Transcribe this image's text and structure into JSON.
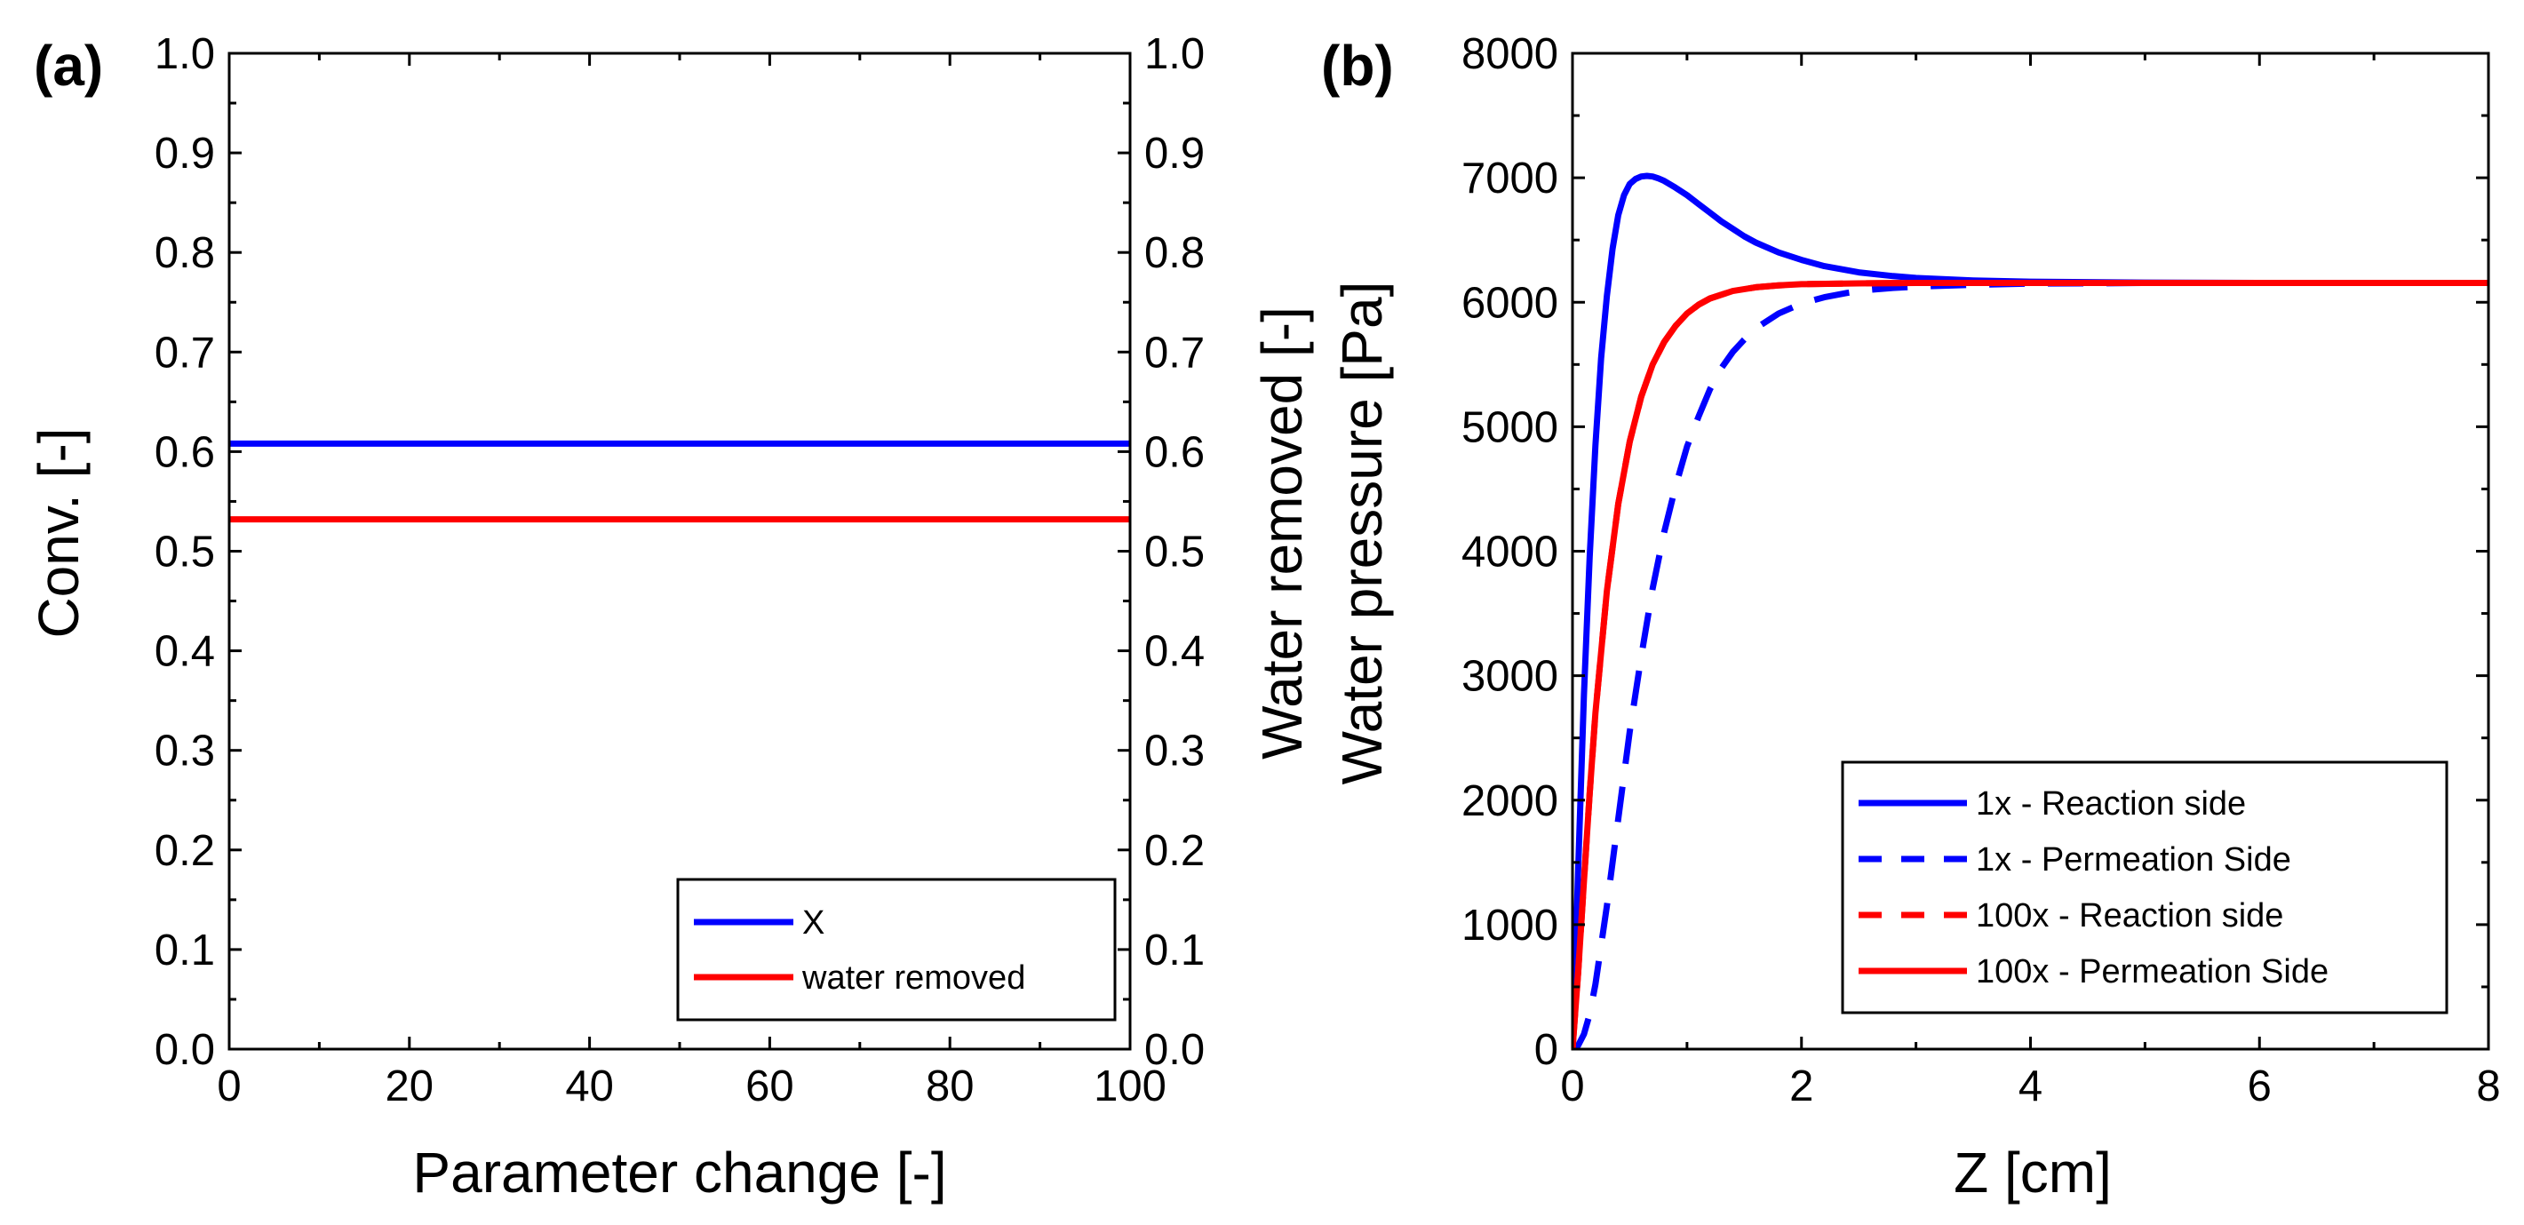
{
  "figure": {
    "panels": [
      "(a)",
      "(b)"
    ]
  },
  "chart_data": [
    {
      "type": "line",
      "panel_label": "(a)",
      "xlabel": "Parameter change [-]",
      "ylabel": "Conv. [-]",
      "y2label": "Water removed [-]",
      "xlim": [
        0,
        100
      ],
      "ylim": [
        0.0,
        1.0
      ],
      "y2lim": [
        0.0,
        1.0
      ],
      "xticks": [
        0,
        20,
        40,
        60,
        80,
        100
      ],
      "xtick_labels": [
        "0",
        "20",
        "40",
        "60",
        "80",
        "100"
      ],
      "yticks": [
        0,
        0.1,
        0.2,
        0.3,
        0.4,
        0.5,
        0.6,
        0.7,
        0.8,
        0.9,
        1.0
      ],
      "ytick_labels": [
        "0.0",
        "0.1",
        "0.2",
        "0.3",
        "0.4",
        "0.5",
        "0.6",
        "0.7",
        "0.8",
        "0.9",
        "1.0"
      ],
      "legend_position": "bottom-right",
      "series": [
        {
          "name": "X",
          "color": "#0000ff",
          "dash": "solid",
          "x": [
            0,
            100
          ],
          "y": [
            0.608,
            0.608
          ]
        },
        {
          "name": "water removed",
          "color": "#ff0000",
          "dash": "solid",
          "x": [
            0,
            100
          ],
          "y": [
            0.532,
            0.532
          ]
        }
      ]
    },
    {
      "type": "line",
      "panel_label": "(b)",
      "xlabel": "Z [cm]",
      "ylabel": "Water pressure [Pa]",
      "xlim": [
        0,
        8
      ],
      "ylim": [
        0,
        8000
      ],
      "xticks": [
        0,
        2,
        4,
        6,
        8
      ],
      "xtick_labels": [
        "0",
        "2",
        "4",
        "6",
        "8"
      ],
      "yticks": [
        0,
        1000,
        2000,
        3000,
        4000,
        5000,
        6000,
        7000,
        8000
      ],
      "ytick_labels": [
        "0",
        "1000",
        "2000",
        "3000",
        "4000",
        "5000",
        "6000",
        "7000",
        "8000"
      ],
      "legend_position": "bottom-right",
      "series": [
        {
          "name": "1x - Reaction side",
          "color": "#0000ff",
          "dash": "solid",
          "x": [
            0,
            0.05,
            0.1,
            0.15,
            0.2,
            0.25,
            0.3,
            0.35,
            0.4,
            0.45,
            0.5,
            0.55,
            0.6,
            0.65,
            0.7,
            0.75,
            0.8,
            0.9,
            1.0,
            1.1,
            1.2,
            1.3,
            1.4,
            1.5,
            1.6,
            1.8,
            2.0,
            2.2,
            2.5,
            2.8,
            3.0,
            3.5,
            4.0,
            5.0,
            6.0,
            7.0,
            8.0
          ],
          "y": [
            0,
            1450,
            2850,
            3950,
            4850,
            5550,
            6050,
            6430,
            6700,
            6860,
            6950,
            6990,
            7010,
            7015,
            7010,
            6995,
            6975,
            6920,
            6860,
            6790,
            6720,
            6650,
            6590,
            6530,
            6480,
            6400,
            6340,
            6290,
            6240,
            6210,
            6195,
            6175,
            6165,
            6158,
            6155,
            6155,
            6155
          ]
        },
        {
          "name": "1x - Permeation Side",
          "color": "#0000ff",
          "dash": "dashed",
          "x": [
            0,
            0.05,
            0.1,
            0.15,
            0.2,
            0.3,
            0.4,
            0.5,
            0.6,
            0.7,
            0.8,
            0.9,
            1.0,
            1.1,
            1.2,
            1.3,
            1.4,
            1.5,
            1.6,
            1.8,
            2.0,
            2.2,
            2.4,
            2.6,
            2.8,
            3.0,
            3.5,
            4.0,
            4.5,
            5.0,
            6.0,
            7.0,
            8.0
          ],
          "y": [
            0,
            30,
            120,
            280,
            520,
            1150,
            1850,
            2550,
            3150,
            3700,
            4150,
            4520,
            4840,
            5080,
            5300,
            5470,
            5600,
            5700,
            5790,
            5910,
            5990,
            6040,
            6075,
            6100,
            6115,
            6125,
            6140,
            6150,
            6152,
            6155,
            6155,
            6155,
            6155
          ]
        },
        {
          "name": "100x - Reaction side",
          "color": "#ff0000",
          "dash": "dashed",
          "x": [
            0,
            0.05,
            0.1,
            0.15,
            0.2,
            0.3,
            0.4,
            0.5,
            0.6,
            0.7,
            0.8,
            0.9,
            1.0,
            1.1,
            1.2,
            1.4,
            1.6,
            1.8,
            2.0,
            2.5,
            3.0,
            4.0,
            5.0,
            6.0,
            7.0,
            8.0
          ],
          "y": [
            0,
            620,
            1350,
            2050,
            2700,
            3680,
            4380,
            4880,
            5240,
            5500,
            5680,
            5810,
            5910,
            5980,
            6030,
            6090,
            6120,
            6135,
            6145,
            6152,
            6155,
            6155,
            6155,
            6155,
            6155,
            6155
          ]
        },
        {
          "name": "100x - Permeation Side",
          "color": "#ff0000",
          "dash": "solid",
          "x": [
            0,
            0.05,
            0.1,
            0.15,
            0.2,
            0.3,
            0.4,
            0.5,
            0.6,
            0.7,
            0.8,
            0.9,
            1.0,
            1.1,
            1.2,
            1.4,
            1.6,
            1.8,
            2.0,
            2.5,
            3.0,
            4.0,
            5.0,
            6.0,
            7.0,
            8.0
          ],
          "y": [
            0,
            620,
            1350,
            2050,
            2700,
            3680,
            4380,
            4880,
            5240,
            5500,
            5680,
            5810,
            5910,
            5980,
            6030,
            6090,
            6120,
            6135,
            6145,
            6152,
            6155,
            6155,
            6155,
            6155,
            6155,
            6155
          ]
        }
      ]
    }
  ]
}
